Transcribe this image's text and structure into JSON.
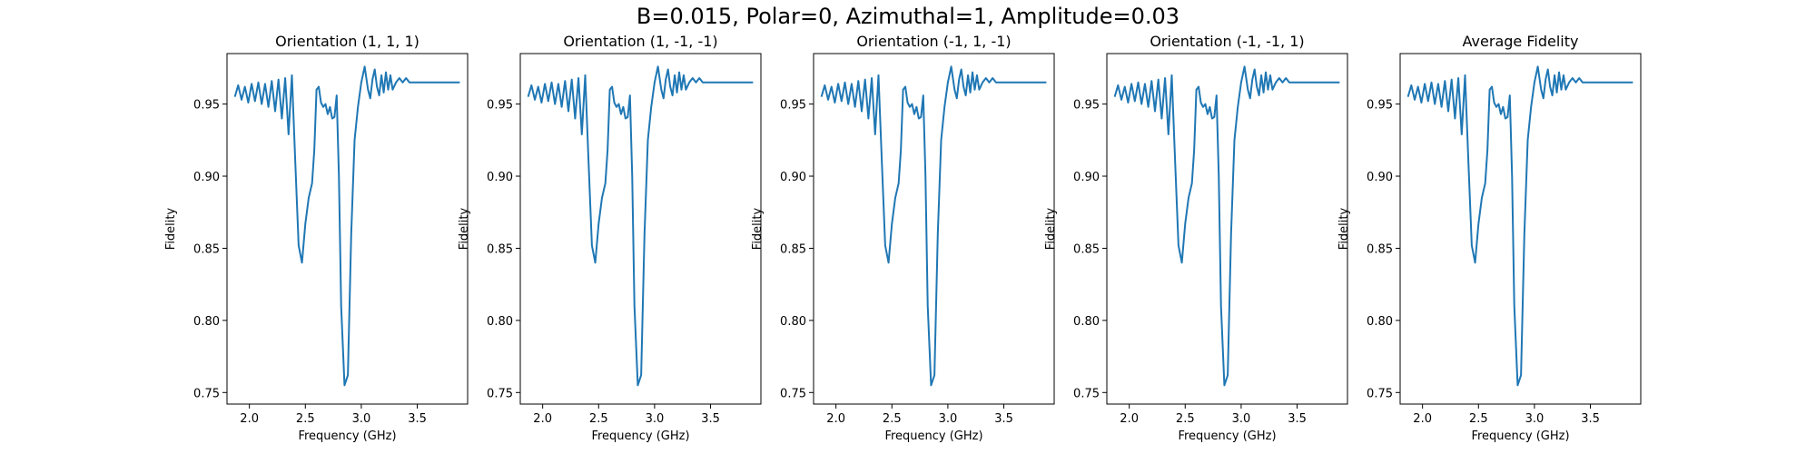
{
  "figure": {
    "suptitle": "B=0.015, Polar=0, Azimuthal=1, Amplitude=0.03",
    "line_color": "#1f77b4"
  },
  "chart_data": [
    {
      "type": "line",
      "title": "Orientation (1, 1, 1)",
      "xlabel": "Frequency (GHz)",
      "ylabel": "Fidelity",
      "xlim": [
        1.8,
        3.95
      ],
      "ylim": [
        0.742,
        0.985
      ],
      "xticks": [
        "2.0",
        "2.5",
        "3.0",
        "3.5"
      ],
      "yticks": [
        "0.75",
        "0.80",
        "0.85",
        "0.90",
        "0.95"
      ],
      "grid": false,
      "series": [
        {
          "x": [
            1.87,
            1.9,
            1.93,
            1.96,
            1.99,
            2.02,
            2.05,
            2.08,
            2.11,
            2.14,
            2.17,
            2.2,
            2.23,
            2.26,
            2.29,
            2.32,
            2.35,
            2.38,
            2.41,
            2.44,
            2.47,
            2.5,
            2.53,
            2.56,
            2.58,
            2.6,
            2.62,
            2.64,
            2.66,
            2.68,
            2.7,
            2.72,
            2.74,
            2.76,
            2.78,
            2.8,
            2.82,
            2.85,
            2.88,
            2.91,
            2.94,
            2.97,
            3.0,
            3.03,
            3.06,
            3.08,
            3.1,
            3.12,
            3.14,
            3.16,
            3.18,
            3.2,
            3.22,
            3.24,
            3.26,
            3.28,
            3.31,
            3.34,
            3.37,
            3.4,
            3.43,
            3.46,
            3.49,
            3.52,
            3.55,
            3.58,
            3.61,
            3.64,
            3.67,
            3.7,
            3.73,
            3.76,
            3.79,
            3.82,
            3.85,
            3.88
          ],
          "y": [
            0.955,
            0.963,
            0.953,
            0.962,
            0.951,
            0.964,
            0.952,
            0.965,
            0.95,
            0.964,
            0.948,
            0.966,
            0.945,
            0.967,
            0.94,
            0.968,
            0.929,
            0.97,
            0.91,
            0.852,
            0.84,
            0.867,
            0.885,
            0.895,
            0.918,
            0.96,
            0.962,
            0.951,
            0.948,
            0.95,
            0.943,
            0.948,
            0.94,
            0.941,
            0.956,
            0.9,
            0.81,
            0.755,
            0.762,
            0.86,
            0.925,
            0.948,
            0.965,
            0.976,
            0.96,
            0.954,
            0.967,
            0.974,
            0.962,
            0.956,
            0.97,
            0.958,
            0.972,
            0.96,
            0.97,
            0.96,
            0.965,
            0.968,
            0.965,
            0.968,
            0.965,
            0.965,
            0.965,
            0.965,
            0.965,
            0.965,
            0.965,
            0.965,
            0.965,
            0.965,
            0.965,
            0.965,
            0.965,
            0.965,
            0.965,
            0.965
          ]
        }
      ]
    },
    {
      "type": "line",
      "title": "Orientation (1, -1, -1)",
      "xlabel": "Frequency (GHz)",
      "ylabel": "Fidelity",
      "xlim": [
        1.8,
        3.95
      ],
      "ylim": [
        0.742,
        0.985
      ],
      "xticks": [
        "2.0",
        "2.5",
        "3.0",
        "3.5"
      ],
      "yticks": [
        "0.75",
        "0.80",
        "0.85",
        "0.90",
        "0.95"
      ],
      "grid": false,
      "series": [
        {
          "x": [
            1.87,
            1.9,
            1.93,
            1.96,
            1.99,
            2.02,
            2.05,
            2.08,
            2.11,
            2.14,
            2.17,
            2.2,
            2.23,
            2.26,
            2.29,
            2.32,
            2.35,
            2.38,
            2.41,
            2.44,
            2.47,
            2.5,
            2.53,
            2.56,
            2.58,
            2.6,
            2.62,
            2.64,
            2.66,
            2.68,
            2.7,
            2.72,
            2.74,
            2.76,
            2.78,
            2.8,
            2.82,
            2.85,
            2.88,
            2.91,
            2.94,
            2.97,
            3.0,
            3.03,
            3.06,
            3.08,
            3.1,
            3.12,
            3.14,
            3.16,
            3.18,
            3.2,
            3.22,
            3.24,
            3.26,
            3.28,
            3.31,
            3.34,
            3.37,
            3.4,
            3.43,
            3.46,
            3.49,
            3.52,
            3.55,
            3.58,
            3.61,
            3.64,
            3.67,
            3.7,
            3.73,
            3.76,
            3.79,
            3.82,
            3.85,
            3.88
          ],
          "y": [
            0.955,
            0.963,
            0.953,
            0.962,
            0.951,
            0.964,
            0.952,
            0.965,
            0.95,
            0.964,
            0.948,
            0.966,
            0.945,
            0.967,
            0.94,
            0.968,
            0.929,
            0.97,
            0.91,
            0.852,
            0.84,
            0.867,
            0.885,
            0.895,
            0.918,
            0.96,
            0.962,
            0.951,
            0.948,
            0.95,
            0.943,
            0.948,
            0.94,
            0.941,
            0.956,
            0.9,
            0.81,
            0.755,
            0.762,
            0.86,
            0.925,
            0.948,
            0.965,
            0.976,
            0.96,
            0.954,
            0.967,
            0.974,
            0.962,
            0.956,
            0.97,
            0.958,
            0.972,
            0.96,
            0.97,
            0.96,
            0.965,
            0.968,
            0.965,
            0.968,
            0.965,
            0.965,
            0.965,
            0.965,
            0.965,
            0.965,
            0.965,
            0.965,
            0.965,
            0.965,
            0.965,
            0.965,
            0.965,
            0.965,
            0.965,
            0.965
          ]
        }
      ]
    },
    {
      "type": "line",
      "title": "Orientation (-1, 1, -1)",
      "xlabel": "Frequency (GHz)",
      "ylabel": "Fidelity",
      "xlim": [
        1.8,
        3.95
      ],
      "ylim": [
        0.742,
        0.985
      ],
      "xticks": [
        "2.0",
        "2.5",
        "3.0",
        "3.5"
      ],
      "yticks": [
        "0.75",
        "0.80",
        "0.85",
        "0.90",
        "0.95"
      ],
      "grid": false,
      "series": [
        {
          "x": [
            1.87,
            1.9,
            1.93,
            1.96,
            1.99,
            2.02,
            2.05,
            2.08,
            2.11,
            2.14,
            2.17,
            2.2,
            2.23,
            2.26,
            2.29,
            2.32,
            2.35,
            2.38,
            2.41,
            2.44,
            2.47,
            2.5,
            2.53,
            2.56,
            2.58,
            2.6,
            2.62,
            2.64,
            2.66,
            2.68,
            2.7,
            2.72,
            2.74,
            2.76,
            2.78,
            2.8,
            2.82,
            2.85,
            2.88,
            2.91,
            2.94,
            2.97,
            3.0,
            3.03,
            3.06,
            3.08,
            3.1,
            3.12,
            3.14,
            3.16,
            3.18,
            3.2,
            3.22,
            3.24,
            3.26,
            3.28,
            3.31,
            3.34,
            3.37,
            3.4,
            3.43,
            3.46,
            3.49,
            3.52,
            3.55,
            3.58,
            3.61,
            3.64,
            3.67,
            3.7,
            3.73,
            3.76,
            3.79,
            3.82,
            3.85,
            3.88
          ],
          "y": [
            0.955,
            0.963,
            0.953,
            0.962,
            0.951,
            0.964,
            0.952,
            0.965,
            0.95,
            0.964,
            0.948,
            0.966,
            0.945,
            0.967,
            0.94,
            0.968,
            0.929,
            0.97,
            0.91,
            0.852,
            0.84,
            0.867,
            0.885,
            0.895,
            0.918,
            0.96,
            0.962,
            0.951,
            0.948,
            0.95,
            0.943,
            0.948,
            0.94,
            0.941,
            0.956,
            0.9,
            0.81,
            0.755,
            0.762,
            0.86,
            0.925,
            0.948,
            0.965,
            0.976,
            0.96,
            0.954,
            0.967,
            0.974,
            0.962,
            0.956,
            0.97,
            0.958,
            0.972,
            0.96,
            0.97,
            0.96,
            0.965,
            0.968,
            0.965,
            0.968,
            0.965,
            0.965,
            0.965,
            0.965,
            0.965,
            0.965,
            0.965,
            0.965,
            0.965,
            0.965,
            0.965,
            0.965,
            0.965,
            0.965,
            0.965,
            0.965
          ]
        }
      ]
    },
    {
      "type": "line",
      "title": "Orientation (-1, -1, 1)",
      "xlabel": "Frequency (GHz)",
      "ylabel": "Fidelity",
      "xlim": [
        1.8,
        3.95
      ],
      "ylim": [
        0.742,
        0.985
      ],
      "xticks": [
        "2.0",
        "2.5",
        "3.0",
        "3.5"
      ],
      "yticks": [
        "0.75",
        "0.80",
        "0.85",
        "0.90",
        "0.95"
      ],
      "grid": false,
      "series": [
        {
          "x": [
            1.87,
            1.9,
            1.93,
            1.96,
            1.99,
            2.02,
            2.05,
            2.08,
            2.11,
            2.14,
            2.17,
            2.2,
            2.23,
            2.26,
            2.29,
            2.32,
            2.35,
            2.38,
            2.41,
            2.44,
            2.47,
            2.5,
            2.53,
            2.56,
            2.58,
            2.6,
            2.62,
            2.64,
            2.66,
            2.68,
            2.7,
            2.72,
            2.74,
            2.76,
            2.78,
            2.8,
            2.82,
            2.85,
            2.88,
            2.91,
            2.94,
            2.97,
            3.0,
            3.03,
            3.06,
            3.08,
            3.1,
            3.12,
            3.14,
            3.16,
            3.18,
            3.2,
            3.22,
            3.24,
            3.26,
            3.28,
            3.31,
            3.34,
            3.37,
            3.4,
            3.43,
            3.46,
            3.49,
            3.52,
            3.55,
            3.58,
            3.61,
            3.64,
            3.67,
            3.7,
            3.73,
            3.76,
            3.79,
            3.82,
            3.85,
            3.88
          ],
          "y": [
            0.955,
            0.963,
            0.953,
            0.962,
            0.951,
            0.964,
            0.952,
            0.965,
            0.95,
            0.964,
            0.948,
            0.966,
            0.945,
            0.967,
            0.94,
            0.968,
            0.929,
            0.97,
            0.91,
            0.852,
            0.84,
            0.867,
            0.885,
            0.895,
            0.918,
            0.96,
            0.962,
            0.951,
            0.948,
            0.95,
            0.943,
            0.948,
            0.94,
            0.941,
            0.956,
            0.9,
            0.81,
            0.755,
            0.762,
            0.86,
            0.925,
            0.948,
            0.965,
            0.976,
            0.96,
            0.954,
            0.967,
            0.974,
            0.962,
            0.956,
            0.97,
            0.958,
            0.972,
            0.96,
            0.97,
            0.96,
            0.965,
            0.968,
            0.965,
            0.968,
            0.965,
            0.965,
            0.965,
            0.965,
            0.965,
            0.965,
            0.965,
            0.965,
            0.965,
            0.965,
            0.965,
            0.965,
            0.965,
            0.965,
            0.965,
            0.965
          ]
        }
      ]
    },
    {
      "type": "line",
      "title": "Average Fidelity",
      "xlabel": "Frequency (GHz)",
      "ylabel": "Fidelity",
      "xlim": [
        1.8,
        3.95
      ],
      "ylim": [
        0.742,
        0.985
      ],
      "xticks": [
        "2.0",
        "2.5",
        "3.0",
        "3.5"
      ],
      "yticks": [
        "0.75",
        "0.80",
        "0.85",
        "0.90",
        "0.95"
      ],
      "grid": false,
      "series": [
        {
          "x": [
            1.87,
            1.9,
            1.93,
            1.96,
            1.99,
            2.02,
            2.05,
            2.08,
            2.11,
            2.14,
            2.17,
            2.2,
            2.23,
            2.26,
            2.29,
            2.32,
            2.35,
            2.38,
            2.41,
            2.44,
            2.47,
            2.5,
            2.53,
            2.56,
            2.58,
            2.6,
            2.62,
            2.64,
            2.66,
            2.68,
            2.7,
            2.72,
            2.74,
            2.76,
            2.78,
            2.8,
            2.82,
            2.85,
            2.88,
            2.91,
            2.94,
            2.97,
            3.0,
            3.03,
            3.06,
            3.08,
            3.1,
            3.12,
            3.14,
            3.16,
            3.18,
            3.2,
            3.22,
            3.24,
            3.26,
            3.28,
            3.31,
            3.34,
            3.37,
            3.4,
            3.43,
            3.46,
            3.49,
            3.52,
            3.55,
            3.58,
            3.61,
            3.64,
            3.67,
            3.7,
            3.73,
            3.76,
            3.79,
            3.82,
            3.85,
            3.88
          ],
          "y": [
            0.955,
            0.963,
            0.953,
            0.962,
            0.951,
            0.964,
            0.952,
            0.965,
            0.95,
            0.964,
            0.948,
            0.966,
            0.945,
            0.967,
            0.94,
            0.968,
            0.929,
            0.97,
            0.91,
            0.852,
            0.84,
            0.867,
            0.885,
            0.895,
            0.918,
            0.96,
            0.962,
            0.951,
            0.948,
            0.95,
            0.943,
            0.948,
            0.94,
            0.941,
            0.956,
            0.9,
            0.81,
            0.755,
            0.762,
            0.86,
            0.925,
            0.948,
            0.965,
            0.976,
            0.96,
            0.954,
            0.967,
            0.974,
            0.962,
            0.956,
            0.97,
            0.958,
            0.972,
            0.96,
            0.97,
            0.96,
            0.965,
            0.968,
            0.965,
            0.968,
            0.965,
            0.965,
            0.965,
            0.965,
            0.965,
            0.965,
            0.965,
            0.965,
            0.965,
            0.965,
            0.965,
            0.965,
            0.965,
            0.965,
            0.965,
            0.965
          ]
        }
      ]
    }
  ]
}
